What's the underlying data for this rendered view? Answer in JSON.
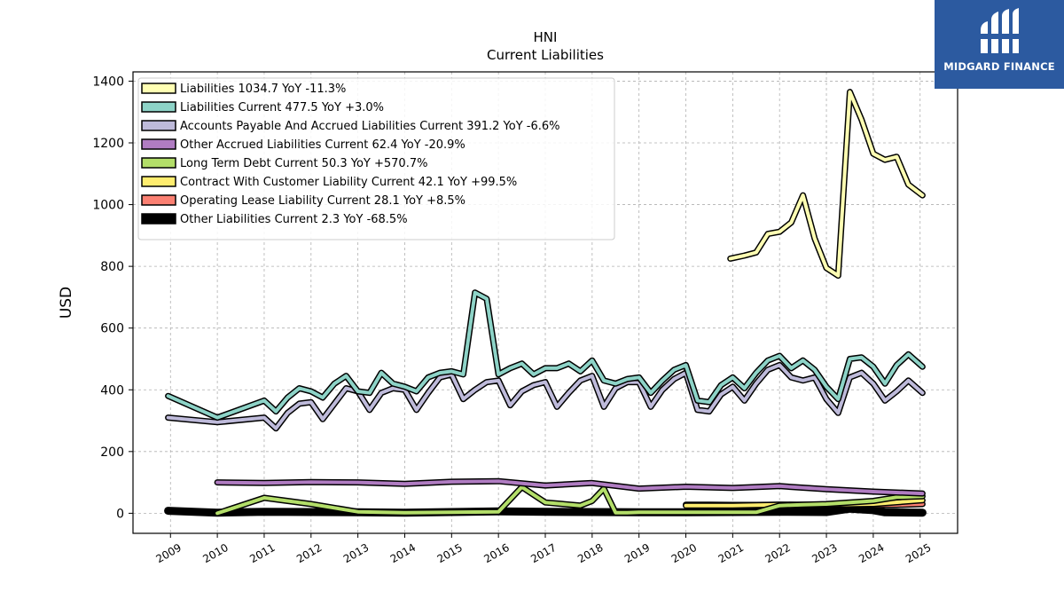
{
  "logo": {
    "text": "MIDGARD FINANCE"
  },
  "chart_data": {
    "type": "line",
    "title": "HNI",
    "subtitle": "Current  Liabilities",
    "ylabel": "USD",
    "xlabel": "",
    "xlim": [
      2008.2,
      2025.8
    ],
    "ylim": [
      -65,
      1430
    ],
    "yticks": [
      0,
      200,
      400,
      600,
      800,
      1000,
      1200,
      1400
    ],
    "xticks": [
      2009,
      2010,
      2011,
      2012,
      2013,
      2014,
      2015,
      2016,
      2017,
      2018,
      2019,
      2020,
      2021,
      2022,
      2023,
      2024,
      2025
    ],
    "grid": true,
    "legend_position": "top-left",
    "series": [
      {
        "name": "Liabilities",
        "legend": "Liabilities  1034.7 YoY -11.3%",
        "color": "#ffffb3",
        "x": [
          2020.95,
          2021.25,
          2021.5,
          2021.75,
          2022.0,
          2022.25,
          2022.5,
          2022.75,
          2023.0,
          2023.25,
          2023.5,
          2023.75,
          2024.0,
          2024.25,
          2024.5,
          2024.75,
          2025.05
        ],
        "y": [
          825,
          835,
          845,
          905,
          912,
          942,
          1030,
          890,
          795,
          770,
          1365,
          1275,
          1165,
          1145,
          1155,
          1065,
          1030
        ]
      },
      {
        "name": "Liabilities Current",
        "legend": "Liabilities Current  477.5 YoY +3.0%",
        "color": "#8dd3c7",
        "x": [
          2008.95,
          2010.0,
          2011.0,
          2011.25,
          2011.5,
          2011.75,
          2012.0,
          2012.25,
          2012.5,
          2012.75,
          2013.0,
          2013.25,
          2013.5,
          2013.75,
          2014.0,
          2014.25,
          2014.5,
          2014.75,
          2015.0,
          2015.25,
          2015.5,
          2015.75,
          2016.0,
          2016.25,
          2016.5,
          2016.75,
          2017.0,
          2017.25,
          2017.5,
          2017.75,
          2018.0,
          2018.25,
          2018.5,
          2018.75,
          2019.0,
          2019.25,
          2019.5,
          2019.75,
          2020.0,
          2020.25,
          2020.5,
          2020.75,
          2021.0,
          2021.25,
          2021.5,
          2021.75,
          2022.0,
          2022.25,
          2022.5,
          2022.75,
          2023.0,
          2023.25,
          2023.5,
          2023.75,
          2024.0,
          2024.25,
          2024.5,
          2024.75,
          2025.05
        ],
        "y": [
          380,
          310,
          365,
          330,
          375,
          405,
          395,
          375,
          420,
          445,
          395,
          390,
          455,
          420,
          410,
          395,
          440,
          455,
          460,
          450,
          715,
          695,
          450,
          470,
          485,
          450,
          470,
          470,
          485,
          460,
          495,
          430,
          420,
          435,
          440,
          390,
          430,
          465,
          480,
          365,
          360,
          415,
          440,
          405,
          455,
          495,
          510,
          470,
          495,
          465,
          410,
          370,
          500,
          505,
          475,
          420,
          480,
          515,
          475
        ]
      },
      {
        "name": "Accounts Payable And Accrued Liabilities Current",
        "legend": "Accounts Payable And Accrued Liabilities Current  391.2 YoY -6.6%",
        "color": "#bebada",
        "x": [
          2008.95,
          2010.0,
          2011.0,
          2011.25,
          2011.5,
          2011.75,
          2012.0,
          2012.25,
          2012.5,
          2012.75,
          2013.0,
          2013.25,
          2013.5,
          2013.75,
          2014.0,
          2014.25,
          2014.5,
          2014.75,
          2015.0,
          2015.25,
          2015.5,
          2015.75,
          2016.0,
          2016.25,
          2016.5,
          2016.75,
          2017.0,
          2017.25,
          2017.5,
          2017.75,
          2018.0,
          2018.25,
          2018.5,
          2018.75,
          2019.0,
          2019.25,
          2019.5,
          2019.75,
          2020.0,
          2020.25,
          2020.5,
          2020.75,
          2021.0,
          2021.25,
          2021.5,
          2021.75,
          2022.0,
          2022.25,
          2022.5,
          2022.75,
          2023.0,
          2023.25,
          2023.5,
          2023.75,
          2024.0,
          2024.25,
          2024.5,
          2024.75,
          2025.05
        ],
        "y": [
          310,
          295,
          310,
          275,
          325,
          355,
          360,
          305,
          355,
          405,
          395,
          335,
          390,
          405,
          400,
          335,
          390,
          440,
          450,
          370,
          400,
          425,
          430,
          350,
          395,
          415,
          425,
          345,
          390,
          430,
          445,
          345,
          405,
          425,
          425,
          345,
          400,
          435,
          455,
          335,
          330,
          385,
          410,
          365,
          420,
          465,
          480,
          440,
          430,
          440,
          370,
          325,
          440,
          455,
          420,
          365,
          395,
          430,
          390
        ]
      },
      {
        "name": "Other Accrued Liabilities Current",
        "legend": "Other Accrued Liabilities Current  62.4 YoY -20.9%",
        "color": "#b07cc2",
        "x": [
          2010.0,
          2011.0,
          2012.0,
          2013.0,
          2014.0,
          2015.0,
          2016.0,
          2017.0,
          2018.0,
          2019.0,
          2020.0,
          2021.0,
          2022.0,
          2023.0,
          2024.0,
          2025.05
        ],
        "y": [
          100,
          98,
          101,
          100,
          95,
          102,
          104,
          90,
          98,
          80,
          86,
          82,
          88,
          78,
          70,
          64
        ]
      },
      {
        "name": "Long Term Debt Current",
        "legend": "Long Term Debt Current  50.3 YoY +570.7%",
        "color": "#b3de69",
        "x": [
          2010.0,
          2011.0,
          2012.0,
          2013.0,
          2014.0,
          2015.0,
          2016.0,
          2016.5,
          2017.0,
          2017.75,
          2018.0,
          2018.25,
          2018.5,
          2018.75,
          2019.0,
          2019.5,
          2020.0,
          2020.5,
          2021.0,
          2021.5,
          2022.0,
          2022.5,
          2023.0,
          2023.5,
          2024.0,
          2024.5,
          2025.05
        ],
        "y": [
          0,
          50,
          30,
          5,
          2,
          3,
          5,
          85,
          35,
          25,
          40,
          80,
          2,
          2,
          3,
          3,
          3,
          3,
          3,
          3,
          25,
          28,
          30,
          35,
          40,
          52,
          55
        ]
      },
      {
        "name": "Contract With Customer Liability Current",
        "legend": "Contract With Customer Liability Current  42.1 YoY +99.5%",
        "color": "#ffed6f",
        "x": [
          2020.0,
          2021.0,
          2022.0,
          2023.0,
          2024.0,
          2025.05
        ],
        "y": [
          25,
          25,
          28,
          28,
          30,
          42
        ]
      },
      {
        "name": "Operating Lease Liability Current",
        "legend": "Operating Lease Liability Current  28.1 YoY +8.5%",
        "color": "#fb8072",
        "x": [
          2020.0,
          2020.5,
          2021.0,
          2021.5,
          2022.0,
          2022.5,
          2023.0,
          2023.5,
          2024.0,
          2024.5,
          2025.05
        ],
        "y": [
          28,
          28,
          27,
          27,
          28,
          27,
          27,
          28,
          26,
          27,
          30
        ]
      },
      {
        "name": "Other Liabilities Current",
        "legend": "Other Liabilities Current  2.3 YoY -68.5%",
        "color": "#000000",
        "x": [
          2008.95,
          2010.0,
          2011.0,
          2012.0,
          2013.0,
          2014.0,
          2015.0,
          2016.0,
          2017.0,
          2018.0,
          2019.0,
          2020.0,
          2021.0,
          2022.0,
          2023.0,
          2023.5,
          2024.0,
          2024.25,
          2025.05
        ],
        "y": [
          8,
          2,
          5,
          4,
          3,
          2,
          4,
          6,
          5,
          4,
          3,
          3,
          4,
          5,
          4,
          15,
          10,
          3,
          2
        ]
      }
    ]
  }
}
